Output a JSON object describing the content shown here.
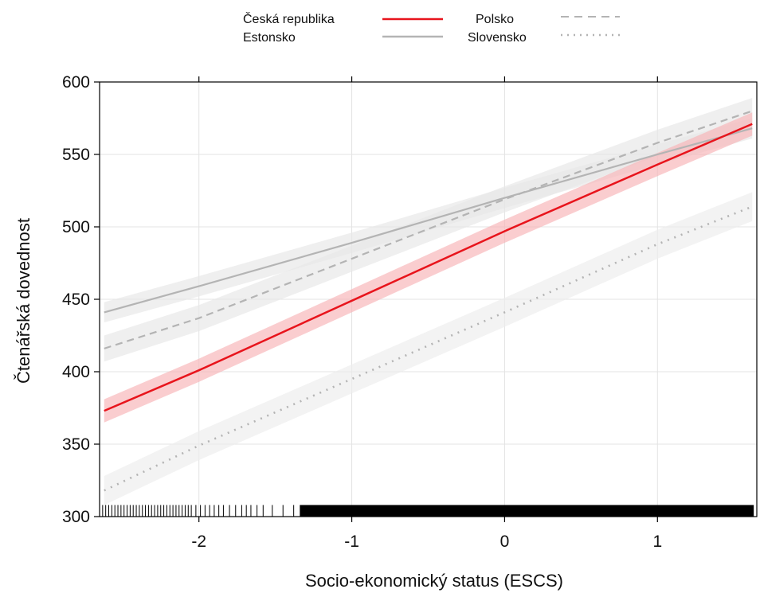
{
  "chart_data": {
    "type": "line",
    "xlabel": "Socio-ekonomický status (ESCS)",
    "ylabel": "Čtenářská dovednost",
    "xlim": [
      -2.65,
      1.65
    ],
    "ylim": [
      300,
      600
    ],
    "x_ticks": [
      -2,
      -1,
      0,
      1
    ],
    "x_tick_labels": [
      "-2",
      "-1",
      "0",
      "1"
    ],
    "y_ticks": [
      300,
      350,
      400,
      450,
      500,
      550,
      600
    ],
    "y_tick_labels": [
      "300",
      "350",
      "400",
      "450",
      "500",
      "550",
      "600"
    ],
    "grid": true,
    "legend_position": "top",
    "series": [
      {
        "name": "Česká republika",
        "color": "#e8141c",
        "style": "solid",
        "x": [
          -2.62,
          -2.0,
          -1.0,
          0.0,
          1.0,
          1.62
        ],
        "y": [
          373,
          401,
          449,
          497,
          543,
          571
        ],
        "ci_halfwidth": 8,
        "band_color": "#f7b2b5"
      },
      {
        "name": "Estonsko",
        "color": "#b4b4b4",
        "style": "solid",
        "x": [
          -2.62,
          -2.0,
          -1.0,
          0.0,
          1.0,
          1.62
        ],
        "y": [
          441,
          459,
          489,
          520,
          550,
          568
        ],
        "ci_halfwidth": 7,
        "band_color": "#e6e6e6"
      },
      {
        "name": "Polsko",
        "color": "#b4b4b4",
        "style": "dashed",
        "x": [
          -2.62,
          -2.0,
          -1.0,
          0.0,
          1.0,
          1.62
        ],
        "y": [
          416,
          437,
          478,
          519,
          558,
          580
        ],
        "ci_halfwidth": 9,
        "band_color": "#e6e6e6"
      },
      {
        "name": "Slovensko",
        "color": "#b4b4b4",
        "style": "dotted",
        "x": [
          -2.62,
          -2.0,
          -1.0,
          0.0,
          1.0,
          1.62
        ],
        "y": [
          318,
          349,
          395,
          441,
          488,
          514
        ],
        "ci_halfwidth": 10,
        "band_color": "#ececec"
      }
    ],
    "rug": {
      "y_range": [
        300,
        308
      ],
      "sparse_x": [
        -2.63,
        -2.61,
        -2.59,
        -2.57,
        -2.55,
        -2.53,
        -2.51,
        -2.49,
        -2.47,
        -2.45,
        -2.43,
        -2.41,
        -2.39,
        -2.37,
        -2.35,
        -2.33,
        -2.31,
        -2.29,
        -2.27,
        -2.25,
        -2.23,
        -2.21,
        -2.19,
        -2.17,
        -2.15,
        -2.13,
        -2.11,
        -2.09,
        -2.07,
        -2.05,
        -2.02,
        -1.99,
        -1.96,
        -1.93,
        -1.9,
        -1.87,
        -1.84,
        -1.8,
        -1.76,
        -1.72,
        -1.69,
        -1.66,
        -1.62,
        -1.58,
        -1.52,
        -1.45,
        -1.38
      ],
      "dense_from": -1.34,
      "dense_to": 1.63
    }
  }
}
